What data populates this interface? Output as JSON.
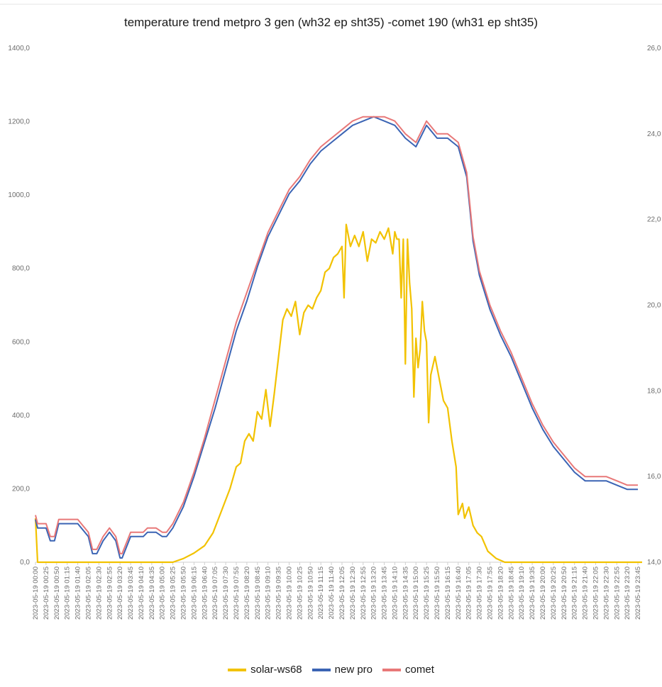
{
  "chart_data": {
    "type": "line",
    "title": "temperature trend metpro 3 gen (wh32 ep sht35) -comet 190 (wh31 ep sht35)",
    "y_left": {
      "ticks": [
        "0,0",
        "200,0",
        "400,0",
        "600,0",
        "800,0",
        "1000,0",
        "1200,0",
        "1400,0"
      ],
      "range": [
        0,
        1400
      ]
    },
    "y_right": {
      "ticks": [
        "14,0",
        "16,0",
        "18,0",
        "20,0",
        "22,0",
        "24,0",
        "26,0"
      ],
      "range": [
        14,
        26
      ]
    },
    "x_labels": [
      "2023-05-19 00:00",
      "2023-05-19 00:25",
      "2023-05-19 00:50",
      "2023-05-19 01:15",
      "2023-05-19 01:40",
      "2023-05-19 02:05",
      "2023-05-19 02:30",
      "2023-05-19 02:55",
      "2023-05-19 03:20",
      "2023-05-19 03:45",
      "2023-05-19 04:10",
      "2023-05-19 04:35",
      "2023-05-19 05:00",
      "2023-05-19 05:25",
      "2023-05-19 05:50",
      "2023-05-19 06:15",
      "2023-05-19 06:40",
      "2023-05-19 07:05",
      "2023-05-19 07:30",
      "2023-05-19 07:55",
      "2023-05-19 08:20",
      "2023-05-19 08:45",
      "2023-05-19 09:10",
      "2023-05-19 09:35",
      "2023-05-19 10:00",
      "2023-05-19 10:25",
      "2023-05-19 10:50",
      "2023-05-19 11:15",
      "2023-05-19 11:40",
      "2023-05-19 12:05",
      "2023-05-19 12:30",
      "2023-05-19 12:55",
      "2023-05-19 13:20",
      "2023-05-19 13:45",
      "2023-05-19 14:10",
      "2023-05-19 14:35",
      "2023-05-19 15:00",
      "2023-05-19 15:25",
      "2023-05-19 15:50",
      "2023-05-19 16:15",
      "2023-05-19 16:40",
      "2023-05-19 17:05",
      "2023-05-19 17:30",
      "2023-05-19 17:55",
      "2023-05-19 18:20",
      "2023-05-19 18:45",
      "2023-05-19 19:10",
      "2023-05-19 19:35",
      "2023-05-19 20:00",
      "2023-05-19 20:25",
      "2023-05-19 20:50",
      "2023-05-19 21:15",
      "2023-05-19 21:40",
      "2023-05-19 22:05",
      "2023-05-19 22:30",
      "2023-05-19 22:55",
      "2023-05-19 23:20",
      "2023-05-19 23:45"
    ],
    "series": [
      {
        "name": "solar-ws68",
        "axis": "left",
        "color": "#f2c200",
        "points": [
          [
            "00:00",
            120
          ],
          [
            "00:05",
            0
          ],
          [
            "05:25",
            0
          ],
          [
            "05:50",
            10
          ],
          [
            "06:15",
            25
          ],
          [
            "06:40",
            45
          ],
          [
            "07:00",
            80
          ],
          [
            "07:20",
            140
          ],
          [
            "07:40",
            200
          ],
          [
            "07:55",
            260
          ],
          [
            "08:05",
            270
          ],
          [
            "08:15",
            330
          ],
          [
            "08:25",
            350
          ],
          [
            "08:35",
            330
          ],
          [
            "08:45",
            410
          ],
          [
            "08:55",
            390
          ],
          [
            "09:05",
            470
          ],
          [
            "09:15",
            370
          ],
          [
            "09:25",
            460
          ],
          [
            "09:35",
            560
          ],
          [
            "09:45",
            660
          ],
          [
            "09:55",
            690
          ],
          [
            "10:05",
            670
          ],
          [
            "10:15",
            710
          ],
          [
            "10:25",
            620
          ],
          [
            "10:35",
            680
          ],
          [
            "10:45",
            700
          ],
          [
            "10:55",
            690
          ],
          [
            "11:05",
            720
          ],
          [
            "11:15",
            740
          ],
          [
            "11:25",
            790
          ],
          [
            "11:35",
            800
          ],
          [
            "11:45",
            830
          ],
          [
            "11:55",
            840
          ],
          [
            "12:05",
            860
          ],
          [
            "12:10",
            720
          ],
          [
            "12:15",
            920
          ],
          [
            "12:25",
            860
          ],
          [
            "12:35",
            890
          ],
          [
            "12:45",
            860
          ],
          [
            "12:55",
            900
          ],
          [
            "13:05",
            820
          ],
          [
            "13:15",
            880
          ],
          [
            "13:25",
            870
          ],
          [
            "13:35",
            900
          ],
          [
            "13:45",
            880
          ],
          [
            "13:55",
            910
          ],
          [
            "14:05",
            840
          ],
          [
            "14:10",
            900
          ],
          [
            "14:15",
            880
          ],
          [
            "14:20",
            880
          ],
          [
            "14:25",
            720
          ],
          [
            "14:30",
            880
          ],
          [
            "14:35",
            540
          ],
          [
            "14:40",
            880
          ],
          [
            "14:45",
            760
          ],
          [
            "14:50",
            690
          ],
          [
            "14:55",
            450
          ],
          [
            "15:00",
            610
          ],
          [
            "15:05",
            530
          ],
          [
            "15:10",
            580
          ],
          [
            "15:15",
            710
          ],
          [
            "15:20",
            630
          ],
          [
            "15:25",
            600
          ],
          [
            "15:30",
            380
          ],
          [
            "15:35",
            510
          ],
          [
            "15:45",
            560
          ],
          [
            "15:55",
            500
          ],
          [
            "16:05",
            440
          ],
          [
            "16:15",
            420
          ],
          [
            "16:25",
            330
          ],
          [
            "16:35",
            260
          ],
          [
            "16:40",
            130
          ],
          [
            "16:50",
            160
          ],
          [
            "16:55",
            120
          ],
          [
            "17:05",
            150
          ],
          [
            "17:15",
            100
          ],
          [
            "17:25",
            80
          ],
          [
            "17:35",
            70
          ],
          [
            "17:50",
            30
          ],
          [
            "18:10",
            10
          ],
          [
            "18:30",
            0
          ],
          [
            "23:55",
            0
          ]
        ]
      },
      {
        "name": "new pro",
        "axis": "right",
        "color": "#3b64b4",
        "points": [
          [
            "00:00",
            15.0
          ],
          [
            "00:05",
            14.8
          ],
          [
            "00:25",
            14.8
          ],
          [
            "00:35",
            14.5
          ],
          [
            "00:45",
            14.5
          ],
          [
            "00:55",
            14.9
          ],
          [
            "01:15",
            14.9
          ],
          [
            "01:40",
            14.9
          ],
          [
            "02:05",
            14.6
          ],
          [
            "02:15",
            14.2
          ],
          [
            "02:25",
            14.2
          ],
          [
            "02:40",
            14.5
          ],
          [
            "02:55",
            14.7
          ],
          [
            "03:10",
            14.5
          ],
          [
            "03:20",
            14.1
          ],
          [
            "03:25",
            14.1
          ],
          [
            "03:45",
            14.6
          ],
          [
            "04:00",
            14.6
          ],
          [
            "04:15",
            14.6
          ],
          [
            "04:25",
            14.7
          ],
          [
            "04:35",
            14.7
          ],
          [
            "04:45",
            14.7
          ],
          [
            "05:00",
            14.6
          ],
          [
            "05:10",
            14.6
          ],
          [
            "05:25",
            14.8
          ],
          [
            "05:35",
            15.0
          ],
          [
            "05:50",
            15.3
          ],
          [
            "06:15",
            16.0
          ],
          [
            "06:40",
            16.8
          ],
          [
            "07:05",
            17.6
          ],
          [
            "07:30",
            18.5
          ],
          [
            "07:55",
            19.4
          ],
          [
            "08:20",
            20.1
          ],
          [
            "08:45",
            20.9
          ],
          [
            "09:10",
            21.6
          ],
          [
            "09:35",
            22.1
          ],
          [
            "10:00",
            22.6
          ],
          [
            "10:25",
            22.9
          ],
          [
            "10:50",
            23.3
          ],
          [
            "11:15",
            23.6
          ],
          [
            "11:40",
            23.8
          ],
          [
            "12:05",
            24.0
          ],
          [
            "12:30",
            24.2
          ],
          [
            "12:55",
            24.3
          ],
          [
            "13:20",
            24.4
          ],
          [
            "13:45",
            24.3
          ],
          [
            "14:10",
            24.2
          ],
          [
            "14:35",
            23.9
          ],
          [
            "15:00",
            23.7
          ],
          [
            "15:25",
            24.2
          ],
          [
            "15:50",
            23.9
          ],
          [
            "16:15",
            23.9
          ],
          [
            "16:40",
            23.7
          ],
          [
            "17:00",
            23.0
          ],
          [
            "17:15",
            21.5
          ],
          [
            "17:30",
            20.7
          ],
          [
            "17:55",
            19.9
          ],
          [
            "18:20",
            19.3
          ],
          [
            "18:45",
            18.8
          ],
          [
            "19:10",
            18.2
          ],
          [
            "19:35",
            17.6
          ],
          [
            "20:00",
            17.1
          ],
          [
            "20:25",
            16.7
          ],
          [
            "20:50",
            16.4
          ],
          [
            "21:15",
            16.1
          ],
          [
            "21:40",
            15.9
          ],
          [
            "22:05",
            15.9
          ],
          [
            "22:30",
            15.9
          ],
          [
            "22:55",
            15.8
          ],
          [
            "23:20",
            15.7
          ],
          [
            "23:45",
            15.7
          ]
        ]
      },
      {
        "name": "comet",
        "axis": "right",
        "color": "#e87878",
        "points": [
          [
            "00:00",
            15.1
          ],
          [
            "00:05",
            14.9
          ],
          [
            "00:25",
            14.9
          ],
          [
            "00:35",
            14.6
          ],
          [
            "00:45",
            14.6
          ],
          [
            "00:55",
            15.0
          ],
          [
            "01:15",
            15.0
          ],
          [
            "01:40",
            15.0
          ],
          [
            "02:05",
            14.7
          ],
          [
            "02:15",
            14.3
          ],
          [
            "02:25",
            14.3
          ],
          [
            "02:40",
            14.6
          ],
          [
            "02:55",
            14.8
          ],
          [
            "03:10",
            14.6
          ],
          [
            "03:20",
            14.2
          ],
          [
            "03:25",
            14.2
          ],
          [
            "03:45",
            14.7
          ],
          [
            "04:00",
            14.7
          ],
          [
            "04:15",
            14.7
          ],
          [
            "04:25",
            14.8
          ],
          [
            "04:35",
            14.8
          ],
          [
            "04:45",
            14.8
          ],
          [
            "05:00",
            14.7
          ],
          [
            "05:10",
            14.7
          ],
          [
            "05:25",
            14.9
          ],
          [
            "05:35",
            15.1
          ],
          [
            "05:50",
            15.4
          ],
          [
            "06:15",
            16.1
          ],
          [
            "06:40",
            16.9
          ],
          [
            "07:05",
            17.8
          ],
          [
            "07:30",
            18.7
          ],
          [
            "07:55",
            19.6
          ],
          [
            "08:20",
            20.3
          ],
          [
            "08:45",
            21.0
          ],
          [
            "09:10",
            21.7
          ],
          [
            "09:35",
            22.2
          ],
          [
            "10:00",
            22.7
          ],
          [
            "10:25",
            23.0
          ],
          [
            "10:50",
            23.4
          ],
          [
            "11:15",
            23.7
          ],
          [
            "11:40",
            23.9
          ],
          [
            "12:05",
            24.1
          ],
          [
            "12:30",
            24.3
          ],
          [
            "12:55",
            24.4
          ],
          [
            "13:20",
            24.4
          ],
          [
            "13:45",
            24.4
          ],
          [
            "14:10",
            24.3
          ],
          [
            "14:35",
            24.0
          ],
          [
            "15:00",
            23.8
          ],
          [
            "15:25",
            24.3
          ],
          [
            "15:50",
            24.0
          ],
          [
            "16:15",
            24.0
          ],
          [
            "16:40",
            23.8
          ],
          [
            "17:00",
            23.1
          ],
          [
            "17:15",
            21.6
          ],
          [
            "17:30",
            20.8
          ],
          [
            "17:55",
            20.0
          ],
          [
            "18:20",
            19.4
          ],
          [
            "18:45",
            18.9
          ],
          [
            "19:10",
            18.3
          ],
          [
            "19:35",
            17.7
          ],
          [
            "20:00",
            17.2
          ],
          [
            "20:25",
            16.8
          ],
          [
            "20:50",
            16.5
          ],
          [
            "21:15",
            16.2
          ],
          [
            "21:40",
            16.0
          ],
          [
            "22:05",
            16.0
          ],
          [
            "22:30",
            16.0
          ],
          [
            "22:55",
            15.9
          ],
          [
            "23:20",
            15.8
          ],
          [
            "23:45",
            15.8
          ]
        ]
      }
    ],
    "legend": {
      "position": "bottom",
      "items": [
        "solar-ws68",
        "new pro",
        "comet"
      ]
    },
    "grid": false
  }
}
